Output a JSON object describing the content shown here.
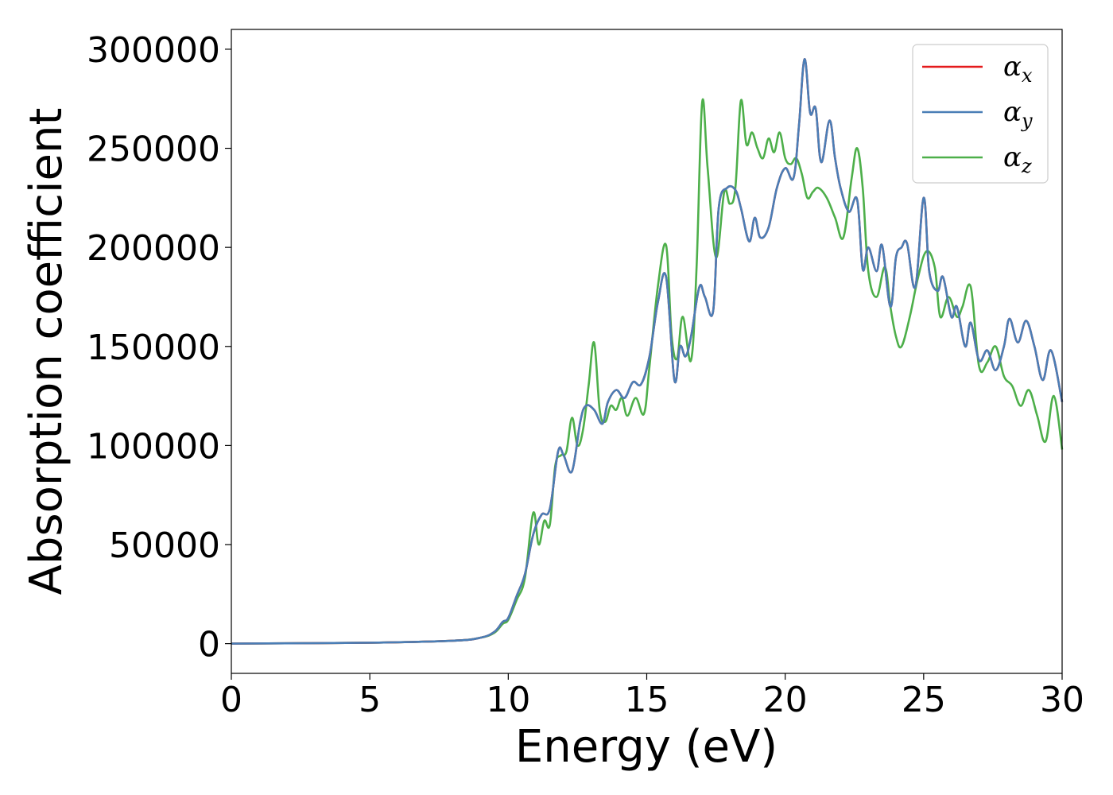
{
  "chart_data": {
    "type": "line",
    "title": "",
    "xlabel": "Energy (eV)",
    "ylabel": "Absorption coefficient",
    "xlim": [
      0,
      30
    ],
    "ylim": [
      -15000,
      310000
    ],
    "xticks": [
      0,
      5,
      10,
      15,
      20,
      25,
      30
    ],
    "xtick_labels": [
      "0",
      "5",
      "10",
      "15",
      "20",
      "25",
      "30"
    ],
    "yticks": [
      0,
      50000,
      100000,
      150000,
      200000,
      250000,
      300000
    ],
    "ytick_labels": [
      "0",
      "50000",
      "100000",
      "150000",
      "200000",
      "250000",
      "300000"
    ],
    "grid": false,
    "legend_position": "top-right",
    "series": [
      {
        "name": "αx",
        "legend_symbol": "α",
        "legend_subscript": "x",
        "color": "#e41a1c",
        "x": [
          0,
          5,
          8,
          9,
          9.5,
          9.8,
          10,
          10.3,
          10.6,
          10.9,
          11.2,
          11.5,
          11.8,
          12.0,
          12.3,
          12.6,
          12.8,
          13.1,
          13.4,
          13.6,
          13.9,
          14.2,
          14.5,
          14.8,
          15.1,
          15.4,
          15.7,
          16.0,
          16.2,
          16.4,
          16.6,
          16.9,
          17.1,
          17.4,
          17.6,
          17.9,
          18.2,
          18.4,
          18.7,
          18.9,
          19.1,
          19.4,
          19.7,
          20.0,
          20.3,
          20.5,
          20.7,
          20.9,
          21.1,
          21.3,
          21.6,
          21.8,
          22.0,
          22.3,
          22.6,
          22.8,
          23.0,
          23.3,
          23.5,
          23.8,
          24.0,
          24.2,
          24.4,
          24.7,
          25.0,
          25.2,
          25.5,
          25.7,
          26.0,
          26.2,
          26.5,
          26.7,
          27.0,
          27.3,
          27.6,
          27.9,
          28.1,
          28.4,
          28.7,
          29.0,
          29.3,
          29.6,
          30.0
        ],
        "values": [
          0,
          500,
          1500,
          3000,
          6000,
          11000,
          13000,
          24000,
          35000,
          55000,
          65000,
          68000,
          97000,
          95000,
          87000,
          112000,
          120000,
          118000,
          111000,
          122000,
          128000,
          124000,
          132000,
          131000,
          145000,
          172000,
          185000,
          133000,
          150000,
          145000,
          155000,
          180000,
          175000,
          168000,
          220000,
          230000,
          229000,
          220000,
          203000,
          215000,
          205000,
          210000,
          230000,
          240000,
          235000,
          262000,
          295000,
          268000,
          270000,
          243000,
          264000,
          245000,
          230000,
          218000,
          224000,
          189000,
          200000,
          188000,
          201000,
          170000,
          195000,
          200000,
          202000,
          180000,
          225000,
          188000,
          178000,
          185000,
          165000,
          170000,
          150000,
          162000,
          143000,
          148000,
          138000,
          150000,
          164000,
          152000,
          163000,
          150000,
          133000,
          148000,
          122000
        ]
      },
      {
        "name": "αy",
        "legend_symbol": "α",
        "legend_subscript": "y",
        "color": "#4a7eb6",
        "x": [
          0,
          5,
          8,
          9,
          9.5,
          9.8,
          10,
          10.3,
          10.6,
          10.9,
          11.2,
          11.5,
          11.8,
          12.0,
          12.3,
          12.6,
          12.8,
          13.1,
          13.4,
          13.6,
          13.9,
          14.2,
          14.5,
          14.8,
          15.1,
          15.4,
          15.7,
          16.0,
          16.2,
          16.4,
          16.6,
          16.9,
          17.1,
          17.4,
          17.6,
          17.9,
          18.2,
          18.4,
          18.7,
          18.9,
          19.1,
          19.4,
          19.7,
          20.0,
          20.3,
          20.5,
          20.7,
          20.9,
          21.1,
          21.3,
          21.6,
          21.8,
          22.0,
          22.3,
          22.6,
          22.8,
          23.0,
          23.3,
          23.5,
          23.8,
          24.0,
          24.2,
          24.4,
          24.7,
          25.0,
          25.2,
          25.5,
          25.7,
          26.0,
          26.2,
          26.5,
          26.7,
          27.0,
          27.3,
          27.6,
          27.9,
          28.1,
          28.4,
          28.7,
          29.0,
          29.3,
          29.6,
          30.0
        ],
        "values": [
          0,
          500,
          1500,
          3000,
          6000,
          11000,
          13000,
          24000,
          35000,
          55000,
          65000,
          68000,
          97000,
          95000,
          87000,
          112000,
          120000,
          118000,
          111000,
          122000,
          128000,
          124000,
          132000,
          131000,
          145000,
          172000,
          185000,
          133000,
          150000,
          145000,
          155000,
          180000,
          175000,
          168000,
          220000,
          230000,
          229000,
          220000,
          203000,
          215000,
          205000,
          210000,
          230000,
          240000,
          235000,
          262000,
          295000,
          268000,
          270000,
          243000,
          264000,
          245000,
          230000,
          218000,
          224000,
          189000,
          200000,
          188000,
          201000,
          170000,
          195000,
          200000,
          202000,
          180000,
          225000,
          188000,
          178000,
          185000,
          165000,
          170000,
          150000,
          162000,
          143000,
          148000,
          138000,
          150000,
          164000,
          152000,
          163000,
          150000,
          133000,
          148000,
          122000
        ]
      },
      {
        "name": "αz",
        "legend_symbol": "α",
        "legend_subscript": "z",
        "color": "#4daf4a",
        "x": [
          0,
          5,
          8,
          9,
          9.5,
          9.8,
          10,
          10.3,
          10.6,
          10.9,
          11.1,
          11.3,
          11.5,
          11.7,
          11.9,
          12.1,
          12.3,
          12.5,
          12.7,
          12.9,
          13.1,
          13.3,
          13.5,
          13.7,
          13.9,
          14.1,
          14.3,
          14.6,
          14.9,
          15.1,
          15.4,
          15.7,
          15.9,
          16.1,
          16.3,
          16.6,
          16.8,
          17.0,
          17.2,
          17.5,
          17.8,
          18.0,
          18.2,
          18.4,
          18.6,
          18.8,
          19.0,
          19.2,
          19.4,
          19.6,
          19.8,
          20.0,
          20.2,
          20.4,
          20.6,
          20.8,
          21.0,
          21.2,
          21.5,
          21.8,
          22.1,
          22.4,
          22.6,
          22.8,
          23.0,
          23.3,
          23.6,
          23.8,
          24.0,
          24.2,
          24.5,
          24.8,
          25.1,
          25.4,
          25.6,
          25.9,
          26.2,
          26.4,
          26.7,
          27.0,
          27.3,
          27.6,
          27.9,
          28.2,
          28.5,
          28.8,
          29.1,
          29.4,
          29.7,
          30.0
        ],
        "values": [
          0,
          500,
          1500,
          3000,
          5500,
          10000,
          12000,
          22000,
          33000,
          66000,
          50000,
          62000,
          60000,
          90000,
          95000,
          97000,
          114000,
          100000,
          108000,
          130000,
          152000,
          118000,
          112000,
          120000,
          118000,
          124000,
          115000,
          124000,
          116000,
          140000,
          180000,
          201000,
          155000,
          144000,
          165000,
          143000,
          190000,
          273000,
          240000,
          195000,
          228000,
          222000,
          230000,
          274000,
          252000,
          258000,
          250000,
          245000,
          255000,
          248000,
          258000,
          245000,
          242000,
          245000,
          237000,
          225000,
          228000,
          230000,
          225000,
          215000,
          205000,
          235000,
          250000,
          230000,
          188000,
          175000,
          190000,
          170000,
          155000,
          150000,
          165000,
          185000,
          198000,
          190000,
          165000,
          175000,
          165000,
          170000,
          180000,
          140000,
          142000,
          150000,
          135000,
          130000,
          120000,
          128000,
          115000,
          102000,
          125000,
          98000
        ]
      }
    ]
  }
}
